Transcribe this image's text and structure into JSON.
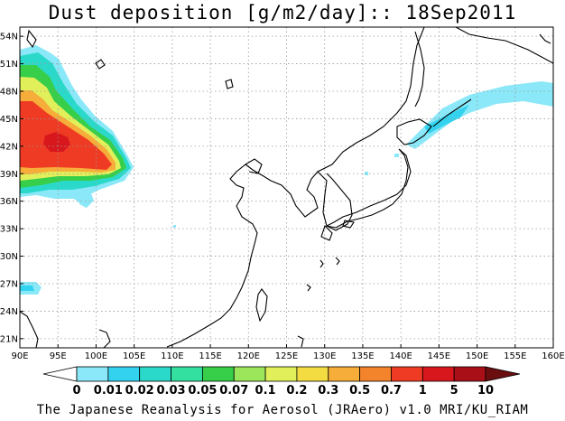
{
  "title": "Dust deposition [g/m2/day]:: 18Sep2011",
  "footer": "The Japanese Reanalysis for Aerosol (JRAero) v1.0 MRI/KU_RIAM",
  "map": {
    "lon_range": [
      90,
      160
    ],
    "lat_range": [
      20,
      55
    ],
    "x_ticks": [
      "90E",
      "95E",
      "100E",
      "105E",
      "110E",
      "115E",
      "120E",
      "125E",
      "130E",
      "135E",
      "140E",
      "145E",
      "150E",
      "155E",
      "160E"
    ],
    "y_ticks": [
      "21N",
      "24N",
      "27N",
      "30N",
      "33N",
      "36N",
      "39N",
      "42N",
      "45N",
      "48N",
      "51N",
      "54N"
    ],
    "grid": true
  },
  "colorbar": {
    "labels": [
      "0",
      "0.01",
      "0.02",
      "0.03",
      "0.05",
      "0.07",
      "0.1",
      "0.2",
      "0.3",
      "0.5",
      "0.7",
      "1",
      "5",
      "10"
    ],
    "colors": [
      "#ffffff",
      "#8be8f8",
      "#33d3f0",
      "#2ad9c9",
      "#33e0a0",
      "#37ce4a",
      "#9be65a",
      "#e1f05a",
      "#f3dc41",
      "#f6ad3a",
      "#f4842c",
      "#ef3b23",
      "#d8171d",
      "#a90f17",
      "#6b0e10"
    ]
  },
  "chart_data": {
    "type": "heatmap",
    "title": "Dust deposition [g/m2/day]:: 18Sep2011",
    "variable": "Dust deposition",
    "units": "g/m2/day",
    "date": "18Sep2011",
    "xlim": [
      90,
      160
    ],
    "ylim": [
      20,
      55
    ],
    "levels": [
      0,
      0.01,
      0.02,
      0.03,
      0.05,
      0.07,
      0.1,
      0.2,
      0.3,
      0.5,
      0.7,
      1,
      5,
      10
    ]
  }
}
